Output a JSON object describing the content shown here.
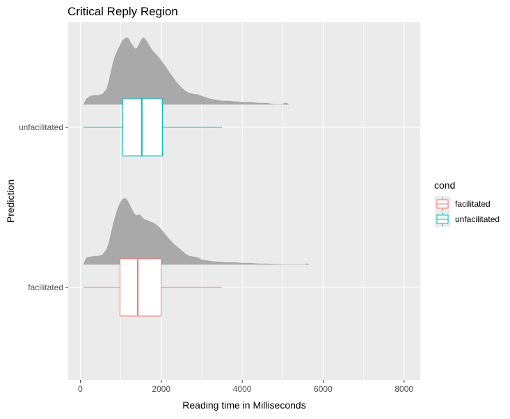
{
  "chart_data": {
    "type": "boxplot",
    "title": "Critical Reply Region",
    "xlabel": "Reading time in Milliseconds",
    "ylabel": "Prediction",
    "xlim": [
      -300,
      8400
    ],
    "x_ticks": [
      0,
      2000,
      4000,
      6000,
      8000
    ],
    "x_tick_labels": [
      "0",
      "2000",
      "4000",
      "6000",
      "8000"
    ],
    "categories": [
      "unfacilitated",
      "facilitated"
    ],
    "grid": true,
    "legend": {
      "title": "cond",
      "position": "right",
      "entries": [
        {
          "label": "facilitated",
          "color": "#F8766D"
        },
        {
          "label": "unfacilitated",
          "color": "#00BFC4"
        }
      ]
    },
    "boxes": [
      {
        "name": "unfacilitated",
        "color": "#00BFC4",
        "whisker_low": 80,
        "q1": 1050,
        "median": 1520,
        "q3": 2030,
        "whisker_high": 3500
      },
      {
        "name": "facilitated",
        "color": "#F8766D",
        "whisker_low": 80,
        "q1": 980,
        "median": 1420,
        "q3": 2000,
        "whisker_high": 3500
      }
    ],
    "densities": [
      {
        "name": "unfacilitated",
        "color": "#A9A9A9",
        "points": [
          [
            80,
            0
          ],
          [
            150,
            0.08
          ],
          [
            250,
            0.12
          ],
          [
            350,
            0.13
          ],
          [
            450,
            0.13
          ],
          [
            550,
            0.15
          ],
          [
            650,
            0.22
          ],
          [
            700,
            0.32
          ],
          [
            750,
            0.45
          ],
          [
            800,
            0.58
          ],
          [
            850,
            0.68
          ],
          [
            900,
            0.75
          ],
          [
            950,
            0.81
          ],
          [
            1000,
            0.87
          ],
          [
            1050,
            0.92
          ],
          [
            1100,
            0.95
          ],
          [
            1150,
            0.96
          ],
          [
            1200,
            0.94
          ],
          [
            1250,
            0.88
          ],
          [
            1300,
            0.84
          ],
          [
            1350,
            0.8
          ],
          [
            1400,
            0.81
          ],
          [
            1450,
            0.86
          ],
          [
            1500,
            0.92
          ],
          [
            1550,
            0.96
          ],
          [
            1600,
            0.94
          ],
          [
            1650,
            0.9
          ],
          [
            1700,
            0.85
          ],
          [
            1750,
            0.8
          ],
          [
            1800,
            0.76
          ],
          [
            1900,
            0.7
          ],
          [
            2000,
            0.63
          ],
          [
            2100,
            0.55
          ],
          [
            2200,
            0.46
          ],
          [
            2300,
            0.38
          ],
          [
            2400,
            0.3
          ],
          [
            2500,
            0.24
          ],
          [
            2600,
            0.19
          ],
          [
            2700,
            0.16
          ],
          [
            2800,
            0.15
          ],
          [
            2900,
            0.14
          ],
          [
            3000,
            0.12
          ],
          [
            3100,
            0.1
          ],
          [
            3200,
            0.08
          ],
          [
            3300,
            0.07
          ],
          [
            3400,
            0.06
          ],
          [
            3500,
            0.05
          ],
          [
            3700,
            0.05
          ],
          [
            3800,
            0.04
          ],
          [
            3900,
            0.04
          ],
          [
            4000,
            0.03
          ],
          [
            4200,
            0.03
          ],
          [
            4400,
            0.02
          ],
          [
            4600,
            0.02
          ],
          [
            4700,
            0.01
          ],
          [
            4800,
            0
          ],
          [
            5000,
            0
          ],
          [
            5050,
            0.02
          ],
          [
            5100,
            0.02
          ],
          [
            5150,
            0
          ]
        ]
      },
      {
        "name": "facilitated",
        "color": "#A9A9A9",
        "points": [
          [
            80,
            0
          ],
          [
            150,
            0.1
          ],
          [
            250,
            0.11
          ],
          [
            350,
            0.12
          ],
          [
            450,
            0.12
          ],
          [
            550,
            0.14
          ],
          [
            650,
            0.22
          ],
          [
            700,
            0.3
          ],
          [
            750,
            0.42
          ],
          [
            800,
            0.55
          ],
          [
            850,
            0.66
          ],
          [
            900,
            0.76
          ],
          [
            950,
            0.84
          ],
          [
            1000,
            0.9
          ],
          [
            1050,
            0.94
          ],
          [
            1100,
            0.95
          ],
          [
            1150,
            0.93
          ],
          [
            1200,
            0.88
          ],
          [
            1250,
            0.82
          ],
          [
            1300,
            0.76
          ],
          [
            1350,
            0.72
          ],
          [
            1400,
            0.7
          ],
          [
            1450,
            0.72
          ],
          [
            1500,
            0.7
          ],
          [
            1550,
            0.66
          ],
          [
            1600,
            0.64
          ],
          [
            1650,
            0.64
          ],
          [
            1700,
            0.62
          ],
          [
            1800,
            0.6
          ],
          [
            1900,
            0.56
          ],
          [
            2000,
            0.5
          ],
          [
            2100,
            0.43
          ],
          [
            2200,
            0.36
          ],
          [
            2300,
            0.3
          ],
          [
            2400,
            0.25
          ],
          [
            2500,
            0.2
          ],
          [
            2600,
            0.15
          ],
          [
            2700,
            0.12
          ],
          [
            2800,
            0.11
          ],
          [
            2900,
            0.1
          ],
          [
            3000,
            0.07
          ],
          [
            3100,
            0.06
          ],
          [
            3200,
            0.05
          ],
          [
            3300,
            0.04
          ],
          [
            3400,
            0.04
          ],
          [
            3600,
            0.03
          ],
          [
            3800,
            0.03
          ],
          [
            4000,
            0.02
          ],
          [
            4200,
            0.02
          ],
          [
            4400,
            0.01
          ],
          [
            4600,
            0.01
          ],
          [
            5000,
            0
          ],
          [
            5550,
            0
          ],
          [
            5580,
            0.01
          ],
          [
            5620,
            0.01
          ],
          [
            5650,
            0
          ]
        ]
      }
    ]
  }
}
